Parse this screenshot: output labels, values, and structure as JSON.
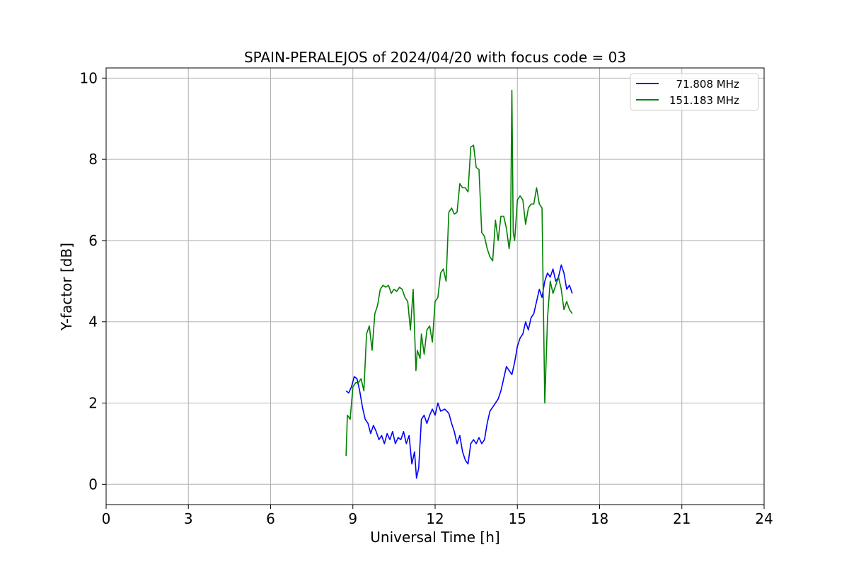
{
  "chart_data": {
    "type": "line",
    "title": "SPAIN-PERALEJOS of 2024/04/20 with focus code = 03",
    "xlabel": "Universal Time [h]",
    "ylabel": "Y-factor [dB]",
    "xlim": [
      0,
      24
    ],
    "ylim": [
      -0.5,
      10.25
    ],
    "xticks": [
      0,
      3,
      6,
      9,
      12,
      15,
      18,
      21,
      24
    ],
    "yticks": [
      0,
      2,
      4,
      6,
      8,
      10
    ],
    "grid": true,
    "legend_position": "top-right",
    "series": [
      {
        "name": "  71.808 MHz",
        "color": "#0000ff",
        "points": [
          [
            8.75,
            2.3
          ],
          [
            8.85,
            2.25
          ],
          [
            8.95,
            2.4
          ],
          [
            9.05,
            2.65
          ],
          [
            9.15,
            2.6
          ],
          [
            9.25,
            2.3
          ],
          [
            9.35,
            1.9
          ],
          [
            9.45,
            1.6
          ],
          [
            9.55,
            1.5
          ],
          [
            9.65,
            1.25
          ],
          [
            9.75,
            1.45
          ],
          [
            9.85,
            1.3
          ],
          [
            9.95,
            1.1
          ],
          [
            10.05,
            1.2
          ],
          [
            10.15,
            1.0
          ],
          [
            10.25,
            1.25
          ],
          [
            10.35,
            1.1
          ],
          [
            10.45,
            1.3
          ],
          [
            10.55,
            1.0
          ],
          [
            10.65,
            1.15
          ],
          [
            10.75,
            1.1
          ],
          [
            10.85,
            1.3
          ],
          [
            10.95,
            1.0
          ],
          [
            11.05,
            1.2
          ],
          [
            11.15,
            0.5
          ],
          [
            11.25,
            0.8
          ],
          [
            11.32,
            0.15
          ],
          [
            11.4,
            0.4
          ],
          [
            11.5,
            1.6
          ],
          [
            11.6,
            1.7
          ],
          [
            11.7,
            1.5
          ],
          [
            11.8,
            1.7
          ],
          [
            11.9,
            1.85
          ],
          [
            12.0,
            1.7
          ],
          [
            12.1,
            2.0
          ],
          [
            12.2,
            1.8
          ],
          [
            12.35,
            1.85
          ],
          [
            12.5,
            1.75
          ],
          [
            12.6,
            1.5
          ],
          [
            12.7,
            1.3
          ],
          [
            12.8,
            1.0
          ],
          [
            12.9,
            1.2
          ],
          [
            13.0,
            0.8
          ],
          [
            13.1,
            0.6
          ],
          [
            13.2,
            0.5
          ],
          [
            13.3,
            1.0
          ],
          [
            13.4,
            1.1
          ],
          [
            13.5,
            1.0
          ],
          [
            13.6,
            1.15
          ],
          [
            13.7,
            1.0
          ],
          [
            13.8,
            1.1
          ],
          [
            13.9,
            1.5
          ],
          [
            14.0,
            1.8
          ],
          [
            14.1,
            1.9
          ],
          [
            14.2,
            2.0
          ],
          [
            14.3,
            2.1
          ],
          [
            14.4,
            2.3
          ],
          [
            14.5,
            2.6
          ],
          [
            14.6,
            2.9
          ],
          [
            14.7,
            2.8
          ],
          [
            14.8,
            2.7
          ],
          [
            14.9,
            3.0
          ],
          [
            15.0,
            3.4
          ],
          [
            15.1,
            3.6
          ],
          [
            15.2,
            3.7
          ],
          [
            15.3,
            4.0
          ],
          [
            15.4,
            3.8
          ],
          [
            15.5,
            4.1
          ],
          [
            15.6,
            4.2
          ],
          [
            15.7,
            4.5
          ],
          [
            15.8,
            4.8
          ],
          [
            15.9,
            4.6
          ],
          [
            16.0,
            5.0
          ],
          [
            16.1,
            5.2
          ],
          [
            16.2,
            5.1
          ],
          [
            16.3,
            5.3
          ],
          [
            16.4,
            5.0
          ],
          [
            16.5,
            5.1
          ],
          [
            16.6,
            5.4
          ],
          [
            16.7,
            5.2
          ],
          [
            16.8,
            4.8
          ],
          [
            16.9,
            4.9
          ],
          [
            17.0,
            4.7
          ]
        ]
      },
      {
        "name": "151.183 MHz",
        "color": "#008000",
        "points": [
          [
            8.75,
            0.7
          ],
          [
            8.8,
            1.7
          ],
          [
            8.9,
            1.6
          ],
          [
            9.0,
            2.4
          ],
          [
            9.1,
            2.5
          ],
          [
            9.2,
            2.5
          ],
          [
            9.3,
            2.6
          ],
          [
            9.4,
            2.3
          ],
          [
            9.5,
            3.7
          ],
          [
            9.6,
            3.9
          ],
          [
            9.7,
            3.3
          ],
          [
            9.8,
            4.2
          ],
          [
            9.9,
            4.4
          ],
          [
            10.0,
            4.8
          ],
          [
            10.1,
            4.9
          ],
          [
            10.2,
            4.85
          ],
          [
            10.3,
            4.9
          ],
          [
            10.4,
            4.7
          ],
          [
            10.5,
            4.8
          ],
          [
            10.6,
            4.75
          ],
          [
            10.7,
            4.85
          ],
          [
            10.8,
            4.8
          ],
          [
            10.9,
            4.6
          ],
          [
            11.0,
            4.5
          ],
          [
            11.1,
            3.8
          ],
          [
            11.2,
            4.8
          ],
          [
            11.3,
            2.8
          ],
          [
            11.35,
            3.3
          ],
          [
            11.45,
            3.1
          ],
          [
            11.5,
            3.7
          ],
          [
            11.6,
            3.2
          ],
          [
            11.7,
            3.8
          ],
          [
            11.8,
            3.9
          ],
          [
            11.9,
            3.5
          ],
          [
            12.0,
            4.5
          ],
          [
            12.1,
            4.6
          ],
          [
            12.2,
            5.2
          ],
          [
            12.3,
            5.3
          ],
          [
            12.4,
            5.0
          ],
          [
            12.5,
            6.7
          ],
          [
            12.6,
            6.8
          ],
          [
            12.7,
            6.65
          ],
          [
            12.8,
            6.7
          ],
          [
            12.9,
            7.4
          ],
          [
            13.0,
            7.3
          ],
          [
            13.1,
            7.3
          ],
          [
            13.2,
            7.2
          ],
          [
            13.3,
            8.3
          ],
          [
            13.4,
            8.35
          ],
          [
            13.5,
            7.8
          ],
          [
            13.6,
            7.75
          ],
          [
            13.7,
            6.2
          ],
          [
            13.8,
            6.1
          ],
          [
            13.9,
            5.8
          ],
          [
            14.0,
            5.6
          ],
          [
            14.1,
            5.5
          ],
          [
            14.2,
            6.5
          ],
          [
            14.3,
            6.0
          ],
          [
            14.4,
            6.6
          ],
          [
            14.5,
            6.6
          ],
          [
            14.6,
            6.3
          ],
          [
            14.7,
            5.8
          ],
          [
            14.75,
            6.1
          ],
          [
            14.8,
            9.7
          ],
          [
            14.85,
            6.2
          ],
          [
            14.9,
            6.0
          ],
          [
            15.0,
            7.0
          ],
          [
            15.1,
            7.1
          ],
          [
            15.2,
            7.0
          ],
          [
            15.3,
            6.4
          ],
          [
            15.4,
            6.8
          ],
          [
            15.5,
            6.9
          ],
          [
            15.6,
            6.9
          ],
          [
            15.7,
            7.3
          ],
          [
            15.8,
            6.9
          ],
          [
            15.9,
            6.8
          ],
          [
            16.0,
            2.0
          ],
          [
            16.1,
            4.1
          ],
          [
            16.2,
            5.0
          ],
          [
            16.3,
            4.7
          ],
          [
            16.4,
            4.9
          ],
          [
            16.5,
            5.1
          ],
          [
            16.6,
            4.8
          ],
          [
            16.7,
            4.3
          ],
          [
            16.8,
            4.5
          ],
          [
            16.9,
            4.3
          ],
          [
            17.0,
            4.2
          ]
        ]
      }
    ]
  }
}
